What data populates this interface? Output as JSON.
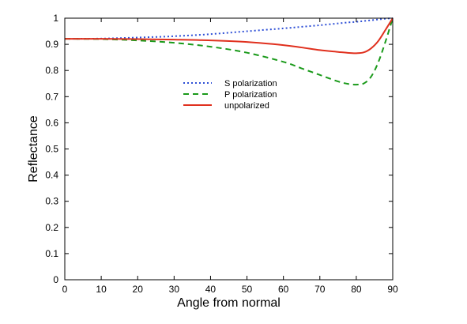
{
  "chart_data": {
    "type": "line",
    "title": "",
    "xlabel": "Angle from normal",
    "ylabel": "Reflectance",
    "xlim": [
      0,
      90
    ],
    "ylim": [
      0,
      1
    ],
    "xticks": [
      "0",
      "10",
      "20",
      "30",
      "40",
      "50",
      "60",
      "70",
      "80",
      "90"
    ],
    "yticks": [
      "0",
      "0.1",
      "0.2",
      "0.3",
      "0.4",
      "0.5",
      "0.6",
      "0.7",
      "0.8",
      "0.9",
      "1"
    ],
    "grid": false,
    "legend_position": "center-top",
    "x": [
      0,
      10,
      20,
      30,
      40,
      50,
      60,
      65,
      70,
      75,
      78,
      80,
      82,
      84,
      86,
      88,
      90
    ],
    "series": [
      {
        "name": "S polarization",
        "color": "#2e4fd6",
        "style": "dotted",
        "values": [
          0.921,
          0.922,
          0.926,
          0.931,
          0.939,
          0.95,
          0.961,
          0.967,
          0.973,
          0.98,
          0.984,
          0.986,
          0.989,
          0.992,
          0.995,
          0.998,
          1.0
        ]
      },
      {
        "name": "P polarization",
        "color": "#1a9a1a",
        "style": "dashed",
        "values": [
          0.921,
          0.92,
          0.915,
          0.906,
          0.891,
          0.868,
          0.833,
          0.808,
          0.783,
          0.758,
          0.748,
          0.746,
          0.75,
          0.775,
          0.83,
          0.91,
          1.0
        ]
      },
      {
        "name": "unpolarized",
        "color": "#e0301e",
        "style": "solid",
        "values": [
          0.921,
          0.921,
          0.92,
          0.918,
          0.915,
          0.909,
          0.897,
          0.888,
          0.878,
          0.871,
          0.867,
          0.866,
          0.869,
          0.884,
          0.912,
          0.955,
          1.0
        ]
      }
    ]
  }
}
